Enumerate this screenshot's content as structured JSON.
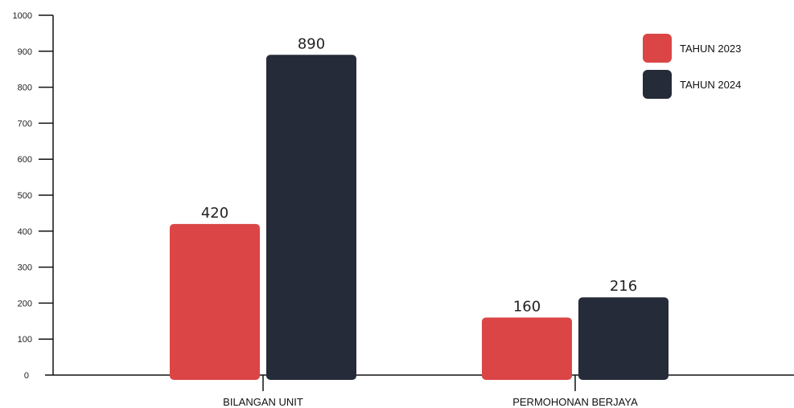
{
  "chart_data": {
    "type": "bar",
    "categories": [
      "BILANGAN UNIT",
      "PERMOHONAN BERJAYA"
    ],
    "series": [
      {
        "name": "TAHUN 2023",
        "color": "#db4546",
        "values": [
          420,
          160
        ]
      },
      {
        "name": "TAHUN 2024",
        "color": "#262b3a",
        "values": [
          890,
          216
        ]
      }
    ],
    "data_labels": [
      [
        "420",
        "160"
      ],
      [
        "890",
        "216"
      ]
    ],
    "y_ticks": [
      0,
      100,
      200,
      300,
      400,
      500,
      600,
      700,
      800,
      900,
      1000
    ],
    "ylim": [
      0,
      1000
    ],
    "title": "",
    "xlabel": "",
    "ylabel": "",
    "grid": false,
    "legend_position": "top-right"
  }
}
